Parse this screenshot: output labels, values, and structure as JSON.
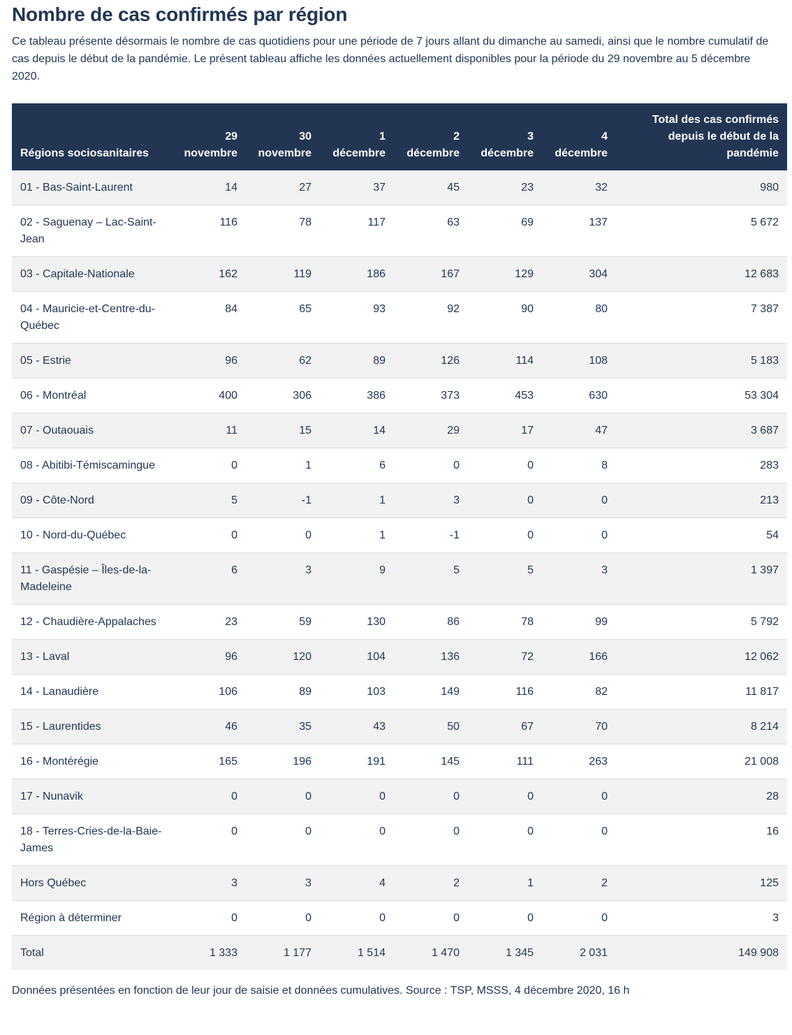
{
  "title": "Nombre de cas confirmés par région",
  "intro": "Ce tableau présente désormais le nombre de cas quotidiens pour une période de 7 jours allant du dimanche au samedi, ainsi que le nombre cumulatif de cas depuis le début de la pandémie. Le présent tableau affiche les données actuellement disponibles pour la période du 29 novembre au 5 décembre 2020.",
  "table": {
    "headers": {
      "region": "Régions sociosanitaires",
      "days": [
        {
          "num": "29",
          "month": "novembre"
        },
        {
          "num": "30",
          "month": "novembre"
        },
        {
          "num": "1",
          "month": "décembre"
        },
        {
          "num": "2",
          "month": "décembre"
        },
        {
          "num": "3",
          "month": "décembre"
        },
        {
          "num": "4",
          "month": "décembre"
        }
      ],
      "total": "Total des cas confirmés depuis le début de la pandémie"
    },
    "rows": [
      {
        "region": "01 - Bas-Saint-Laurent",
        "d": [
          "14",
          "27",
          "37",
          "45",
          "23",
          "32"
        ],
        "total": "980"
      },
      {
        "region": "02 - Saguenay – Lac-Saint-Jean",
        "d": [
          "116",
          "78",
          "117",
          "63",
          "69",
          "137"
        ],
        "total": "5 672"
      },
      {
        "region": "03 - Capitale-Nationale",
        "d": [
          "162",
          "119",
          "186",
          "167",
          "129",
          "304"
        ],
        "total": "12 683"
      },
      {
        "region": "04 - Mauricie-et-Centre-du-Québec",
        "d": [
          "84",
          "65",
          "93",
          "92",
          "90",
          "80"
        ],
        "total": "7 387"
      },
      {
        "region": "05 - Estrie",
        "d": [
          "96",
          "62",
          "89",
          "126",
          "114",
          "108"
        ],
        "total": "5 183"
      },
      {
        "region": "06 - Montréal",
        "d": [
          "400",
          "306",
          "386",
          "373",
          "453",
          "630"
        ],
        "total": "53 304"
      },
      {
        "region": "07 - Outaouais",
        "d": [
          "11",
          "15",
          "14",
          "29",
          "17",
          "47"
        ],
        "total": "3 687"
      },
      {
        "region": "08 - Abitibi-Témiscamingue",
        "d": [
          "0",
          "1",
          "6",
          "0",
          "0",
          "8"
        ],
        "total": "283"
      },
      {
        "region": "09 - Côte-Nord",
        "d": [
          "5",
          "-1",
          "1",
          "3",
          "0",
          "0"
        ],
        "total": "213"
      },
      {
        "region": "10 - Nord-du-Québec",
        "d": [
          "0",
          "0",
          "1",
          "-1",
          "0",
          "0"
        ],
        "total": "54"
      },
      {
        "region": "11 - Gaspésie – Îles-de-la-Madeleine",
        "d": [
          "6",
          "3",
          "9",
          "5",
          "5",
          "3"
        ],
        "total": "1 397"
      },
      {
        "region": "12 - Chaudière-Appalaches",
        "d": [
          "23",
          "59",
          "130",
          "86",
          "78",
          "99"
        ],
        "total": "5 792"
      },
      {
        "region": "13 - Laval",
        "d": [
          "96",
          "120",
          "104",
          "136",
          "72",
          "166"
        ],
        "total": "12 062"
      },
      {
        "region": "14 - Lanaudière",
        "d": [
          "106",
          "89",
          "103",
          "149",
          "116",
          "82"
        ],
        "total": "11 817"
      },
      {
        "region": "15 - Laurentides",
        "d": [
          "46",
          "35",
          "43",
          "50",
          "67",
          "70"
        ],
        "total": "8 214"
      },
      {
        "region": "16 - Montérégie",
        "d": [
          "165",
          "196",
          "191",
          "145",
          "111",
          "263"
        ],
        "total": "21 008"
      },
      {
        "region": "17 - Nunavik",
        "d": [
          "0",
          "0",
          "0",
          "0",
          "0",
          "0"
        ],
        "total": "28"
      },
      {
        "region": "18 - Terres-Cries-de-la-Baie-James",
        "d": [
          "0",
          "0",
          "0",
          "0",
          "0",
          "0"
        ],
        "total": "16"
      },
      {
        "region": "Hors Québec",
        "d": [
          "3",
          "3",
          "4",
          "2",
          "1",
          "2"
        ],
        "total": "125"
      },
      {
        "region": "Région à déterminer",
        "d": [
          "0",
          "0",
          "0",
          "0",
          "0",
          "0"
        ],
        "total": "3"
      },
      {
        "region": "Total",
        "d": [
          "1 333",
          "1 177",
          "1 514",
          "1 470",
          "1 345",
          "2 031"
        ],
        "total": "149 908"
      }
    ]
  },
  "source": "Données présentées en fonction de leur jour de saisie et données cumulatives. Source : TSP, MSSS, 4 décembre 2020, 16 h",
  "colors": {
    "header_bg": "#223654",
    "header_text": "#ffffff",
    "body_text": "#223654",
    "row_shade": "#f2f2f2",
    "row_shade_alt": "#ececec",
    "row_border": "#dcdcdc"
  }
}
